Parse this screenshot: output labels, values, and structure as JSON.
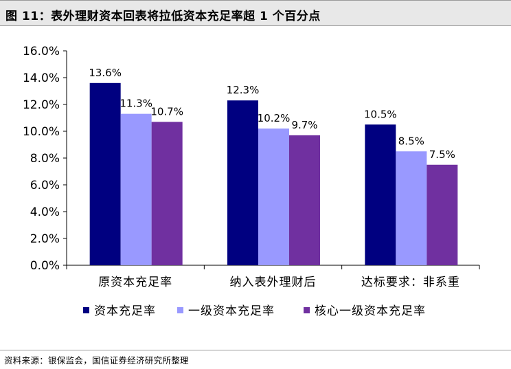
{
  "header": {
    "title": "图 11：表外理财资本回表将拉低资本充足率超 1 个百分点"
  },
  "chart_data": {
    "type": "bar",
    "title": "",
    "xlabel": "",
    "ylabel": "",
    "categories": [
      "原资本充足率",
      "纳入表外理财后",
      "达标要求：非系重"
    ],
    "series": [
      {
        "name": "资本充足率",
        "values": [
          13.6,
          12.3,
          10.5
        ],
        "labels": [
          "13.6%",
          "12.3%",
          "10.5%"
        ],
        "color": "#000080"
      },
      {
        "name": "一级资本充足率",
        "values": [
          11.3,
          10.2,
          8.5
        ],
        "labels": [
          "11.3%",
          "10.2%",
          "8.5%"
        ],
        "color": "#9999ff"
      },
      {
        "name": "核心一级资本充足率",
        "values": [
          10.7,
          9.7,
          7.5
        ],
        "labels": [
          "10.7%",
          "9.7%",
          "7.5%"
        ],
        "color": "#7030a0"
      }
    ],
    "ylim": [
      0,
      16
    ],
    "yticks": [
      0,
      2,
      4,
      6,
      8,
      10,
      12,
      14,
      16
    ],
    "ytick_labels": [
      "0.0%",
      "2.0%",
      "4.0%",
      "6.0%",
      "8.0%",
      "10.0%",
      "12.0%",
      "14.0%",
      "16.0%"
    ],
    "grid": false,
    "legend": "bottom"
  },
  "footer": {
    "source": "资料来源：银保监会，国信证券经济研究所整理"
  }
}
